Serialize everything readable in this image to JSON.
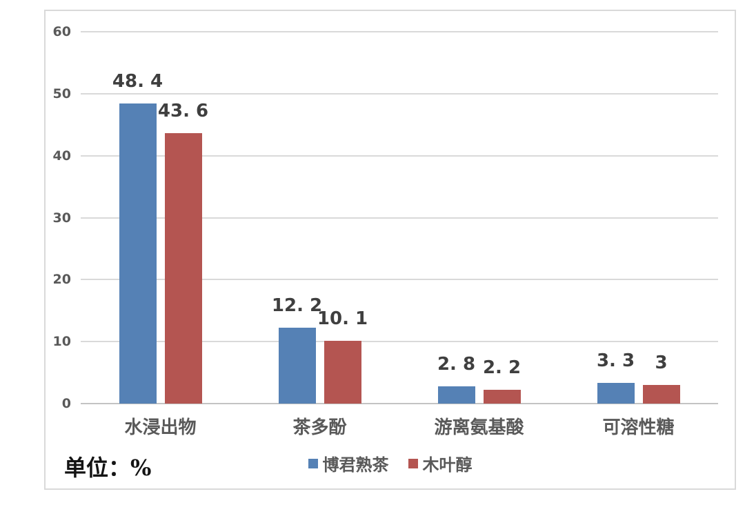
{
  "chart_data": {
    "type": "bar",
    "title": "",
    "unit_label": "单位：%",
    "categories": [
      "水浸出物",
      "茶多酚",
      "游离氨基酸",
      "可溶性糖"
    ],
    "series": [
      {
        "name": "博君熟茶",
        "color": "#5581b5",
        "values": [
          48.4,
          12.2,
          2.8,
          3.3
        ],
        "display_labels": [
          "48. 4",
          "12. 2",
          "2. 8",
          "3. 3"
        ]
      },
      {
        "name": "木叶醇",
        "color": "#b45551",
        "values": [
          43.6,
          10.1,
          2.2,
          3
        ],
        "display_labels": [
          "43. 6",
          "10. 1",
          "2. 2",
          "3"
        ]
      }
    ],
    "ylim": [
      0,
      60
    ],
    "yticks": [
      0,
      10,
      20,
      30,
      40,
      50,
      60
    ],
    "grid": true,
    "legend_position": "bottom-center"
  },
  "colors": {
    "bar_blue": "#5581b5",
    "bar_red": "#b45551",
    "gridline": "#d9d9d9",
    "zero_axis": "#c3c3c3",
    "tick_label": "#595959",
    "category_label": "#595959",
    "value_label": "#3f3f3f",
    "frame_border": "#d9d9d9",
    "background": "#ffffff"
  }
}
